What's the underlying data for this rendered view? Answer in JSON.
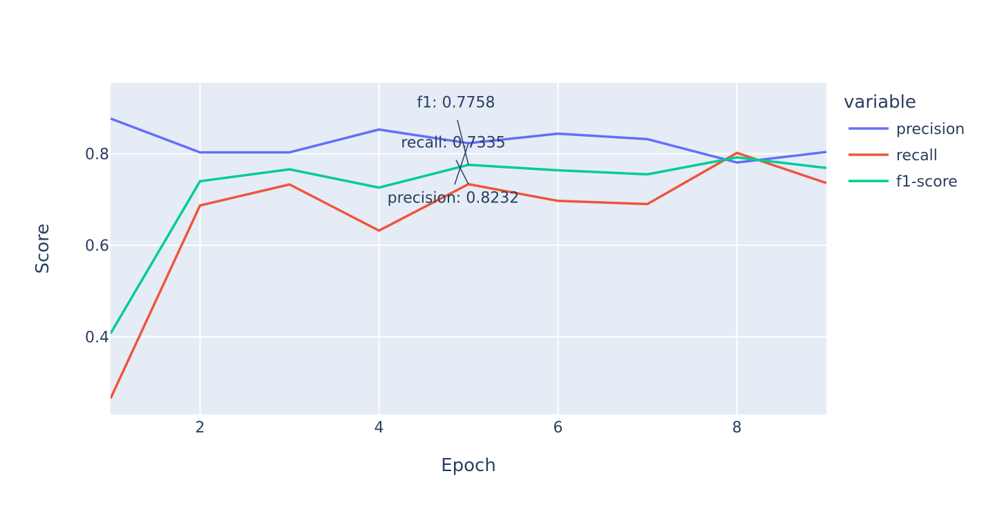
{
  "chart_data": {
    "type": "line",
    "title": "",
    "xlabel": "Epoch",
    "ylabel": "Score",
    "x": [
      1,
      2,
      3,
      4,
      5,
      6,
      7,
      8,
      9
    ],
    "xlim": [
      1,
      9
    ],
    "ylim": [
      0.23,
      0.955
    ],
    "xticks": [
      2,
      4,
      6,
      8
    ],
    "yticks": [
      0.4,
      0.6,
      0.8
    ],
    "xtick_labels": [
      "2",
      "4",
      "6",
      "8"
    ],
    "ytick_labels": [
      "0.4",
      "0.6",
      "0.8"
    ],
    "grid": true,
    "legend": {
      "title": "variable",
      "position": "right"
    },
    "series": [
      {
        "name": "precision",
        "color": "#636efa",
        "values": [
          0.877,
          0.803,
          0.803,
          0.853,
          0.8232,
          0.844,
          0.832,
          0.781,
          0.804
        ]
      },
      {
        "name": "recall",
        "color": "#ef553b",
        "values": [
          0.265,
          0.687,
          0.733,
          0.632,
          0.7335,
          0.697,
          0.69,
          0.802,
          0.736
        ]
      },
      {
        "name": "f1-score",
        "color": "#00cc96",
        "values": [
          0.407,
          0.74,
          0.766,
          0.726,
          0.7758,
          0.764,
          0.755,
          0.792,
          0.769
        ]
      }
    ],
    "annotations": [
      {
        "text": "f1: 0.7758",
        "x": 5,
        "y": 0.7758
      },
      {
        "text": "recall: 0.7335",
        "x": 5,
        "y": 0.7335
      },
      {
        "text": "precision: 0.8232",
        "x": 5,
        "y": 0.8232
      }
    ]
  }
}
